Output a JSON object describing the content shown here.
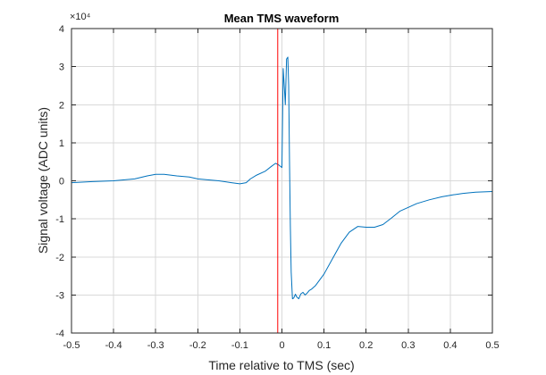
{
  "chart_data": {
    "type": "line",
    "title": "Mean TMS waveform",
    "xlabel": "Time relative to TMS (sec)",
    "ylabel": "Signal voltage (ADC units)",
    "xlim": [
      -0.5,
      0.5
    ],
    "ylim": [
      -4,
      4
    ],
    "y_scale_exponent_label": "×10⁴",
    "xticks": [
      -0.5,
      -0.4,
      -0.3,
      -0.2,
      -0.1,
      0,
      0.1,
      0.2,
      0.3,
      0.4,
      0.5
    ],
    "xtick_labels": [
      "-0.5",
      "-0.4",
      "-0.3",
      "-0.2",
      "-0.1",
      "0",
      "0.1",
      "0.2",
      "0.3",
      "0.4",
      "0.5"
    ],
    "yticks": [
      -4,
      -3,
      -2,
      -1,
      0,
      1,
      2,
      3,
      4
    ],
    "ytick_labels": [
      "-4",
      "-3",
      "-2",
      "-1",
      "0",
      "1",
      "2",
      "3",
      "4"
    ],
    "grid": true,
    "colors": {
      "series": "#0072bd",
      "marker_line": "#ff0000",
      "grid": "#d9d9d9",
      "axis": "#262626"
    },
    "vertical_marker": {
      "x": -0.01
    },
    "series": [
      {
        "x": [
          -0.5,
          -0.45,
          -0.4,
          -0.35,
          -0.32,
          -0.3,
          -0.28,
          -0.25,
          -0.22,
          -0.2,
          -0.18,
          -0.15,
          -0.12,
          -0.1,
          -0.085,
          -0.075,
          -0.06,
          -0.04,
          -0.025,
          -0.015,
          -0.008,
          0.0,
          0.003,
          0.006,
          0.008,
          0.011,
          0.014,
          0.016,
          0.018,
          0.02,
          0.022,
          0.025,
          0.028,
          0.032,
          0.035,
          0.04,
          0.045,
          0.05,
          0.055,
          0.06,
          0.065,
          0.07,
          0.08,
          0.1,
          0.12,
          0.14,
          0.16,
          0.18,
          0.2,
          0.22,
          0.24,
          0.26,
          0.28,
          0.3,
          0.32,
          0.35,
          0.38,
          0.4,
          0.43,
          0.46,
          0.5
        ],
        "y": [
          -0.05,
          -0.02,
          0.0,
          0.05,
          0.13,
          0.17,
          0.17,
          0.13,
          0.1,
          0.05,
          0.03,
          0.0,
          -0.05,
          -0.08,
          -0.05,
          0.05,
          0.15,
          0.25,
          0.38,
          0.46,
          0.42,
          0.35,
          2.95,
          2.4,
          2.0,
          3.2,
          3.25,
          2.5,
          0.5,
          -1.2,
          -2.4,
          -3.1,
          -3.08,
          -2.98,
          -3.05,
          -3.1,
          -2.97,
          -2.93,
          -3.0,
          -2.95,
          -2.88,
          -2.85,
          -2.75,
          -2.45,
          -2.05,
          -1.65,
          -1.35,
          -1.2,
          -1.22,
          -1.22,
          -1.15,
          -0.98,
          -0.8,
          -0.7,
          -0.6,
          -0.5,
          -0.42,
          -0.38,
          -0.33,
          -0.3,
          -0.28
        ]
      }
    ]
  }
}
